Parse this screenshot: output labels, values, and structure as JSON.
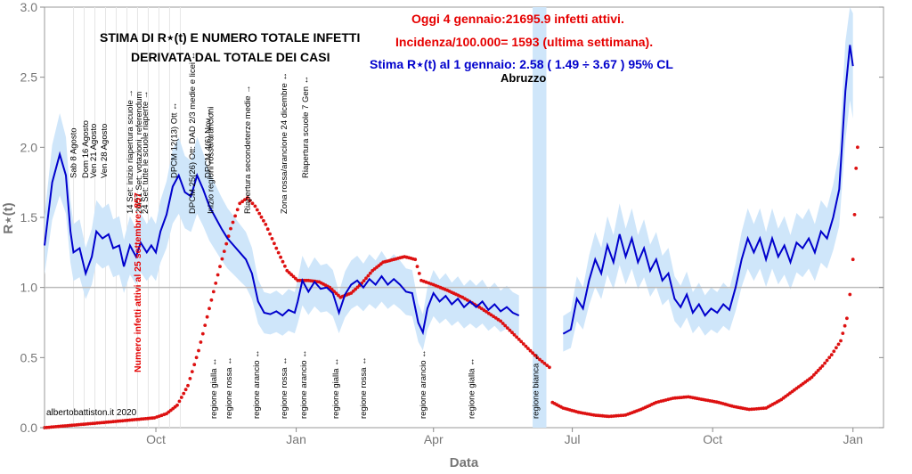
{
  "chart_data": {
    "type": "line",
    "xlabel": "Data",
    "ylabel": "R⋆(t)",
    "ylim": [
      0,
      3.0
    ],
    "xlim": [
      "2020-07-20",
      "2022-01-21"
    ],
    "grid": "light vertical lines",
    "x_ticks": [
      {
        "date": "2020-10-01",
        "label": "Oct"
      },
      {
        "date": "2021-01-01",
        "label": "Jan"
      },
      {
        "date": "2021-04-01",
        "label": "Apr"
      },
      {
        "date": "2021-07-01",
        "label": "Jul"
      },
      {
        "date": "2021-10-01",
        "label": "Oct"
      },
      {
        "date": "2022-01-01",
        "label": "Jan"
      }
    ],
    "y_ticks": [
      "0.0",
      "0.5",
      "1.0",
      "1.5",
      "2.0",
      "2.5",
      "3.0"
    ],
    "reference_line": 1.0,
    "series": [
      {
        "name": "Stima R⋆(t)",
        "color": "#0000cc",
        "band_color": "#cfe6fa",
        "points": [
          [
            "2020-07-20",
            1.3
          ],
          [
            "2020-07-25",
            1.75
          ],
          [
            "2020-07-30",
            1.95
          ],
          [
            "2020-08-03",
            1.8
          ],
          [
            "2020-08-06",
            1.4
          ],
          [
            "2020-08-08",
            1.25
          ],
          [
            "2020-08-12",
            1.28
          ],
          [
            "2020-08-16",
            1.1
          ],
          [
            "2020-08-20",
            1.22
          ],
          [
            "2020-08-23",
            1.4
          ],
          [
            "2020-08-27",
            1.35
          ],
          [
            "2020-08-31",
            1.38
          ],
          [
            "2020-09-03",
            1.28
          ],
          [
            "2020-09-07",
            1.3
          ],
          [
            "2020-09-10",
            1.15
          ],
          [
            "2020-09-14",
            1.3
          ],
          [
            "2020-09-18",
            1.22
          ],
          [
            "2020-09-21",
            1.32
          ],
          [
            "2020-09-25",
            1.25
          ],
          [
            "2020-09-28",
            1.3
          ],
          [
            "2020-10-01",
            1.25
          ],
          [
            "2020-10-04",
            1.4
          ],
          [
            "2020-10-08",
            1.52
          ],
          [
            "2020-10-12",
            1.72
          ],
          [
            "2020-10-16",
            1.8
          ],
          [
            "2020-10-20",
            1.68
          ],
          [
            "2020-10-24",
            1.65
          ],
          [
            "2020-10-28",
            1.8
          ],
          [
            "2020-11-01",
            1.7
          ],
          [
            "2020-11-05",
            1.58
          ],
          [
            "2020-11-09",
            1.5
          ],
          [
            "2020-11-13",
            1.42
          ],
          [
            "2020-11-17",
            1.35
          ],
          [
            "2020-11-21",
            1.3
          ],
          [
            "2020-11-25",
            1.25
          ],
          [
            "2020-11-29",
            1.2
          ],
          [
            "2020-12-03",
            1.1
          ],
          [
            "2020-12-07",
            0.9
          ],
          [
            "2020-12-11",
            0.82
          ],
          [
            "2020-12-15",
            0.81
          ],
          [
            "2020-12-19",
            0.83
          ],
          [
            "2020-12-23",
            0.8
          ],
          [
            "2020-12-27",
            0.84
          ],
          [
            "2020-12-31",
            0.82
          ],
          [
            "2021-01-02",
            0.9
          ],
          [
            "2021-01-05",
            1.05
          ],
          [
            "2021-01-09",
            0.97
          ],
          [
            "2021-01-13",
            1.04
          ],
          [
            "2021-01-17",
            0.99
          ],
          [
            "2021-01-21",
            1.0
          ],
          [
            "2021-01-25",
            0.96
          ],
          [
            "2021-01-29",
            0.82
          ],
          [
            "2021-02-02",
            0.95
          ],
          [
            "2021-02-06",
            1.02
          ],
          [
            "2021-02-10",
            1.05
          ],
          [
            "2021-02-14",
            1.0
          ],
          [
            "2021-02-18",
            1.06
          ],
          [
            "2021-02-22",
            1.02
          ],
          [
            "2021-02-26",
            1.08
          ],
          [
            "2021-03-02",
            1.02
          ],
          [
            "2021-03-06",
            1.06
          ],
          [
            "2021-03-10",
            1.02
          ],
          [
            "2021-03-14",
            0.97
          ],
          [
            "2021-03-18",
            0.96
          ],
          [
            "2021-03-22",
            0.75
          ],
          [
            "2021-03-25",
            0.68
          ],
          [
            "2021-03-28",
            0.85
          ],
          [
            "2021-04-01",
            0.96
          ],
          [
            "2021-04-05",
            0.9
          ],
          [
            "2021-04-09",
            0.94
          ],
          [
            "2021-04-13",
            0.88
          ],
          [
            "2021-04-17",
            0.92
          ],
          [
            "2021-04-21",
            0.86
          ],
          [
            "2021-04-25",
            0.9
          ],
          [
            "2021-04-29",
            0.86
          ],
          [
            "2021-05-03",
            0.9
          ],
          [
            "2021-05-07",
            0.84
          ],
          [
            "2021-05-11",
            0.88
          ],
          [
            "2021-05-15",
            0.83
          ],
          [
            "2021-05-19",
            0.86
          ],
          [
            "2021-05-23",
            0.82
          ],
          [
            "2021-05-27",
            0.8
          ],
          null,
          [
            "2021-06-25",
            0.67
          ],
          [
            "2021-06-30",
            0.7
          ],
          [
            "2021-07-04",
            0.92
          ],
          [
            "2021-07-08",
            0.85
          ],
          [
            "2021-07-12",
            1.05
          ],
          [
            "2021-07-16",
            1.2
          ],
          [
            "2021-07-20",
            1.1
          ],
          [
            "2021-07-24",
            1.3
          ],
          [
            "2021-07-28",
            1.18
          ],
          [
            "2021-08-01",
            1.38
          ],
          [
            "2021-08-05",
            1.22
          ],
          [
            "2021-08-09",
            1.35
          ],
          [
            "2021-08-13",
            1.18
          ],
          [
            "2021-08-17",
            1.28
          ],
          [
            "2021-08-21",
            1.12
          ],
          [
            "2021-08-25",
            1.2
          ],
          [
            "2021-08-29",
            1.05
          ],
          [
            "2021-09-02",
            1.1
          ],
          [
            "2021-09-06",
            0.92
          ],
          [
            "2021-09-10",
            0.86
          ],
          [
            "2021-09-14",
            0.95
          ],
          [
            "2021-09-18",
            0.82
          ],
          [
            "2021-09-22",
            0.88
          ],
          [
            "2021-09-26",
            0.8
          ],
          [
            "2021-09-30",
            0.85
          ],
          [
            "2021-10-04",
            0.82
          ],
          [
            "2021-10-08",
            0.88
          ],
          [
            "2021-10-12",
            0.84
          ],
          [
            "2021-10-16",
            1.0
          ],
          [
            "2021-10-20",
            1.2
          ],
          [
            "2021-10-24",
            1.35
          ],
          [
            "2021-10-28",
            1.25
          ],
          [
            "2021-11-01",
            1.35
          ],
          [
            "2021-11-05",
            1.2
          ],
          [
            "2021-11-09",
            1.35
          ],
          [
            "2021-11-13",
            1.22
          ],
          [
            "2021-11-17",
            1.3
          ],
          [
            "2021-11-21",
            1.18
          ],
          [
            "2021-11-25",
            1.32
          ],
          [
            "2021-11-29",
            1.28
          ],
          [
            "2021-12-03",
            1.35
          ],
          [
            "2021-12-07",
            1.25
          ],
          [
            "2021-12-11",
            1.4
          ],
          [
            "2021-12-15",
            1.35
          ],
          [
            "2021-12-19",
            1.5
          ],
          [
            "2021-12-23",
            1.7
          ],
          [
            "2021-12-27",
            2.4
          ],
          [
            "2021-12-30",
            2.73
          ],
          [
            "2022-01-01",
            2.58
          ]
        ]
      },
      {
        "name": "Numero infetti attivi",
        "color": "#dd1111",
        "points": [
          [
            "2020-07-20",
            0.0
          ],
          [
            "2020-08-10",
            0.02
          ],
          [
            "2020-08-31",
            0.04
          ],
          [
            "2020-09-20",
            0.06
          ],
          [
            "2020-09-30",
            0.07
          ],
          [
            "2020-10-08",
            0.1
          ],
          [
            "2020-10-15",
            0.16
          ],
          [
            "2020-10-22",
            0.3
          ],
          [
            "2020-10-29",
            0.55
          ],
          [
            "2020-11-05",
            0.85
          ],
          [
            "2020-11-12",
            1.15
          ],
          [
            "2020-11-19",
            1.42
          ],
          [
            "2020-11-25",
            1.6
          ],
          [
            "2020-11-30",
            1.64
          ],
          [
            "2020-12-05",
            1.58
          ],
          [
            "2020-12-12",
            1.45
          ],
          [
            "2020-12-19",
            1.28
          ],
          [
            "2020-12-26",
            1.12
          ],
          [
            "2021-01-02",
            1.05
          ],
          [
            "2021-01-09",
            1.05
          ],
          [
            "2021-01-16",
            1.04
          ],
          [
            "2021-01-23",
            1.0
          ],
          [
            "2021-01-30",
            0.93
          ],
          [
            "2021-02-06",
            0.96
          ],
          [
            "2021-02-13",
            1.03
          ],
          [
            "2021-02-20",
            1.12
          ],
          [
            "2021-02-27",
            1.18
          ],
          [
            "2021-03-06",
            1.2
          ],
          [
            "2021-03-13",
            1.22
          ],
          [
            "2021-03-20",
            1.2
          ],
          [
            "2021-03-24",
            1.05
          ],
          [
            "2021-04-01",
            1.02
          ],
          [
            "2021-04-10",
            0.98
          ],
          [
            "2021-04-20",
            0.93
          ],
          [
            "2021-05-01",
            0.86
          ],
          [
            "2021-05-15",
            0.76
          ],
          [
            "2021-05-27",
            0.63
          ],
          [
            "2021-06-08",
            0.5
          ],
          [
            "2021-06-16",
            0.43
          ],
          null,
          [
            "2021-06-18",
            0.18
          ],
          [
            "2021-06-25",
            0.14
          ],
          [
            "2021-07-05",
            0.11
          ],
          [
            "2021-07-15",
            0.09
          ],
          [
            "2021-07-25",
            0.08
          ],
          [
            "2021-08-05",
            0.09
          ],
          [
            "2021-08-15",
            0.13
          ],
          [
            "2021-08-25",
            0.18
          ],
          [
            "2021-09-05",
            0.21
          ],
          [
            "2021-09-15",
            0.22
          ],
          [
            "2021-09-25",
            0.2
          ],
          [
            "2021-10-05",
            0.18
          ],
          [
            "2021-10-15",
            0.15
          ],
          [
            "2021-10-25",
            0.13
          ],
          [
            "2021-11-05",
            0.14
          ],
          [
            "2021-11-15",
            0.2
          ],
          [
            "2021-11-25",
            0.28
          ],
          [
            "2021-12-05",
            0.36
          ],
          [
            "2021-12-12",
            0.44
          ],
          [
            "2021-12-18",
            0.52
          ],
          [
            "2021-12-24",
            0.62
          ],
          [
            "2021-12-28",
            0.78
          ],
          [
            "2021-12-30",
            0.95
          ],
          [
            "2022-01-01",
            1.2
          ],
          [
            "2022-01-02",
            1.52
          ],
          [
            "2022-01-03",
            1.85
          ],
          [
            "2022-01-04",
            2.0
          ]
        ]
      }
    ],
    "header": {
      "line1": "Oggi 4  gennaio:21695.9 infetti attivi.",
      "line2": "Incidenza/100.000= 1593 (ultima settimana).",
      "line3": "Stima R⋆(t) al 1 gennaio: 2.58 ( 1.49 ÷ 3.67 ) 95% CL",
      "region": "Abruzzo"
    },
    "title_line1": "STIMA DI R⋆(t) E NUMERO TOTALE INFETTI",
    "title_line2": "DERIVATA DAL TOTALE DEI CASI",
    "credit": "albertobattiston.it 2020",
    "red_axis_label": "Numero infetti attivi al 25 settembre: 857",
    "events_top": [
      {
        "date": "2020-08-08",
        "label": "Sab 8 Agosto"
      },
      {
        "date": "2020-08-16",
        "label": "Dom 16 Agosto"
      },
      {
        "date": "2020-08-21",
        "label": "Ven 21 Agosto"
      },
      {
        "date": "2020-08-28",
        "label": "Ven 28 Agosto"
      },
      {
        "date": "2020-09-14",
        "label": "14 Set: inizio riapertura scuole →"
      },
      {
        "date": "2020-09-20",
        "label": "20/21 Set: votazioni, referendum"
      },
      {
        "date": "2020-09-24",
        "label": "24 Set: tutte le scuole riaperte →"
      },
      {
        "date": "2020-10-13",
        "label": "DPCM 12(13) Ott ↔"
      },
      {
        "date": "2020-10-25",
        "label": "DPCM 25(26) Ott: DAD 2/3 medie e licei ↔"
      },
      {
        "date": "2020-11-04",
        "label": "DPCM 4(6) Nov ↔"
      },
      {
        "date": "2020-11-06",
        "label": "Inizio regioni rosse/arancioni"
      },
      {
        "date": "2020-11-30",
        "label": "Riapertura secondeterze medie →"
      },
      {
        "date": "2020-12-24",
        "label": "Zona rossa/arancione 24 dicembre ↔"
      },
      {
        "date": "2021-01-07",
        "label": "Riapertura scuole 7 Gen ↔"
      }
    ],
    "events_bottom": [
      {
        "date": "2020-11-08",
        "label": "regione gialla ↔"
      },
      {
        "date": "2020-11-18",
        "label": "regione rossa ↔"
      },
      {
        "date": "2020-12-06",
        "label": "regione arancio ↔"
      },
      {
        "date": "2020-12-24",
        "label": "regione rossa ↔"
      },
      {
        "date": "2021-01-06",
        "label": "regione arancio ↔"
      },
      {
        "date": "2021-01-27",
        "label": "regione gialla ↔"
      },
      {
        "date": "2021-02-14",
        "label": "regione rossa ↔"
      },
      {
        "date": "2021-03-25",
        "label": "regione arancio ↔"
      },
      {
        "date": "2021-04-26",
        "label": "regione gialla ↔"
      },
      {
        "date": "2021-06-07",
        "label": "regione bianca ↔"
      }
    ]
  }
}
